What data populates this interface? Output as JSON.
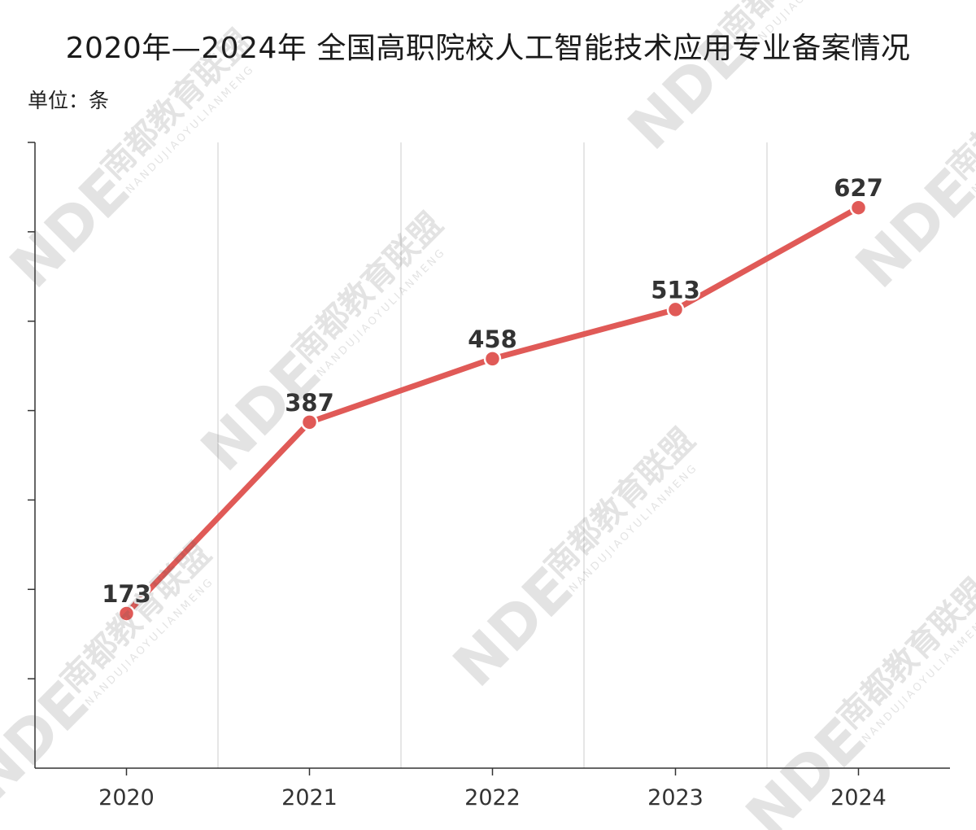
{
  "chart": {
    "title": "2020年—2024年 全国高职院校人工智能技术应用专业备案情况",
    "unit_label": "单位：条"
  },
  "watermark": {
    "logo": "NDE",
    "cn": "南都教育联盟",
    "en": "NANDUJIAOYULIANMENG"
  },
  "colors": {
    "line": "#e05a57",
    "marker_fill": "#e05a57",
    "marker_stroke": "#ffffff",
    "axis": "#333333",
    "grid": "#dddddd",
    "label": "#333333"
  },
  "chart_data": {
    "type": "line",
    "title": "2020年—2024年 全国高职院校人工智能技术应用专业备案情况",
    "ylabel": "单位：条",
    "categories": [
      "2020",
      "2021",
      "2022",
      "2023",
      "2024"
    ],
    "series": [
      {
        "values": [
          173,
          387,
          458,
          513,
          627
        ]
      }
    ],
    "ylim": [
      0,
      700
    ],
    "y_tick_count": 7,
    "data_labels": true,
    "grid": "vertical"
  }
}
